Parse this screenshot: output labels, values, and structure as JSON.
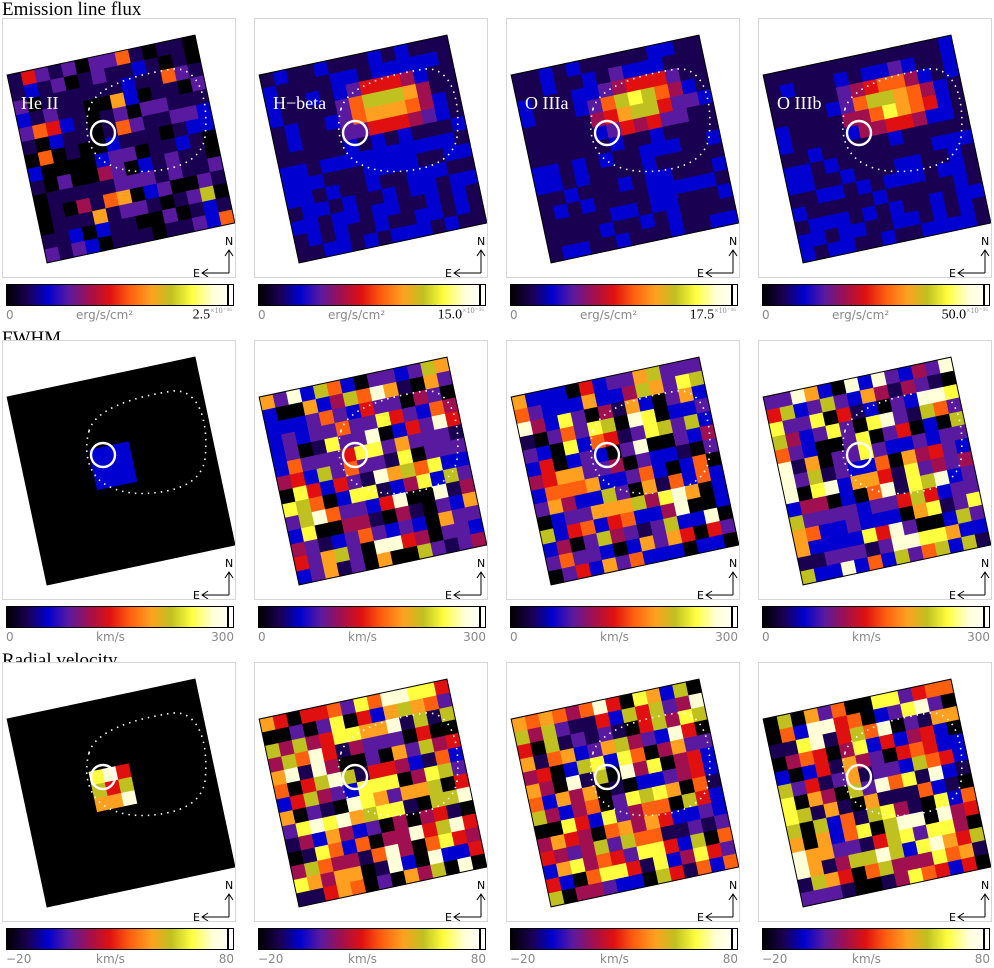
{
  "sections": [
    {
      "title": "Emission line flux"
    },
    {
      "title": "FWHM"
    },
    {
      "title": "Radial velocity"
    }
  ],
  "line_labels": [
    "He II",
    "H−beta",
    "O IIIa",
    "O IIIb"
  ],
  "compass": {
    "north": "N",
    "east": "E"
  },
  "colorbars": {
    "flux": [
      {
        "min": "0",
        "unit": "erg/s/cm²",
        "max_mantissa": "2.5",
        "max_exp": "×10⁻¹⁶"
      },
      {
        "min": "0",
        "unit": "erg/s/cm²",
        "max_mantissa": "15.0",
        "max_exp": "×10⁻¹⁶"
      },
      {
        "min": "0",
        "unit": "erg/s/cm²",
        "max_mantissa": "17.5",
        "max_exp": "×10⁻¹⁶"
      },
      {
        "min": "0",
        "unit": "erg/s/cm²",
        "max_mantissa": "50.0",
        "max_exp": "×10⁻¹⁶"
      }
    ],
    "fwhm": {
      "min": "0",
      "unit": "km/s",
      "max": "300"
    },
    "velocity": {
      "min": "−20",
      "unit": "km/s",
      "max": "80"
    }
  },
  "colors": {
    "scale": [
      "#000000",
      "#1a0050",
      "#0000d0",
      "#5a1aa0",
      "#a01050",
      "#e01010",
      "#ff6010",
      "#ffa020",
      "#c0c020",
      "#ffff40",
      "#ffffd8",
      "#ffffff"
    ],
    "aperture_circle": "#ffffff",
    "contour": "#ffffff"
  }
}
